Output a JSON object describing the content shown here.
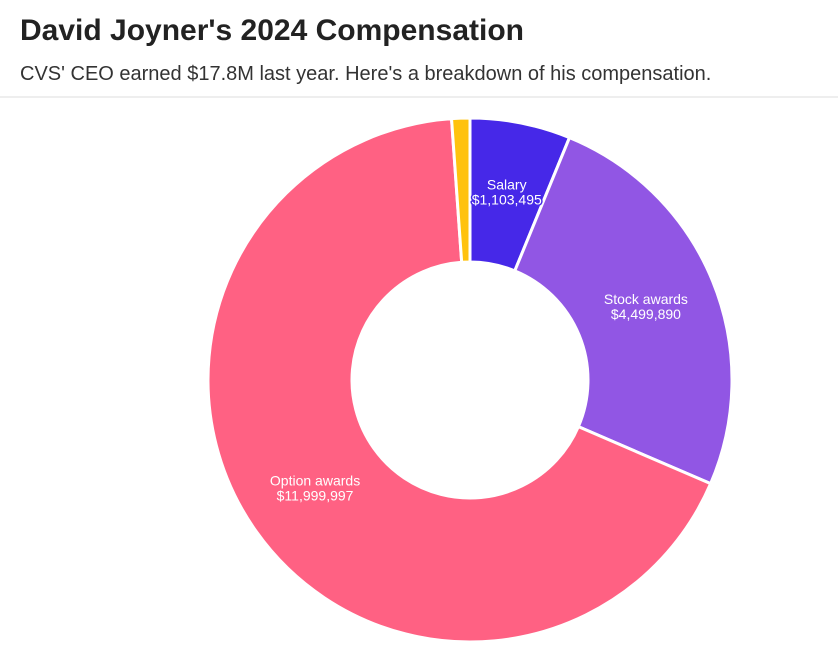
{
  "chart_data": {
    "type": "donut",
    "title": "David Joyner's 2024 Compensation",
    "subtitle": "CVS' CEO earned $17.8M last year. Here's a breakdown of his compensation.",
    "categories": [
      "Salary",
      "Stock awards",
      "Option awards",
      null
    ],
    "values": [
      1103495,
      4499890,
      11999997,
      200000
    ],
    "value_labels": [
      "$1,103,495",
      "$4,499,890",
      "$11,999,997",
      null
    ],
    "colors": [
      "#4628e8",
      "#9156e4",
      "#ff6183",
      "#ffc20e"
    ]
  }
}
